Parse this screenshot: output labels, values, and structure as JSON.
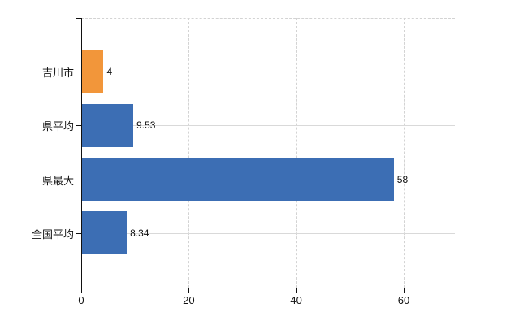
{
  "chart_data": {
    "type": "bar",
    "orientation": "horizontal",
    "title": "",
    "xlabel": "",
    "ylabel": "",
    "legend": "none",
    "grid": "on",
    "categories": [
      "吉川市",
      "県平均",
      "県最大",
      "全国平均"
    ],
    "values": [
      4,
      9.53,
      58,
      8.34
    ],
    "value_labels": [
      "4",
      "9.53",
      "58",
      "8.34"
    ],
    "bar_colors": [
      "#f2963a",
      "#3c6eb4",
      "#3c6eb4",
      "#3c6eb4"
    ],
    "x_tick_labels": [
      "0",
      "20",
      "40",
      "60"
    ],
    "x_tick_values": [
      0,
      20,
      40,
      60
    ],
    "xlim": [
      0,
      69.5
    ],
    "colors": {
      "bar_orange": "#f2963a",
      "bar_blue": "#3c6eb4",
      "axis": "#111111",
      "text": "#111111",
      "grid_horizontal": "#d9d9d9",
      "grid_vertical_dashed": "#d3d3d3",
      "background": "#ffffff"
    }
  }
}
